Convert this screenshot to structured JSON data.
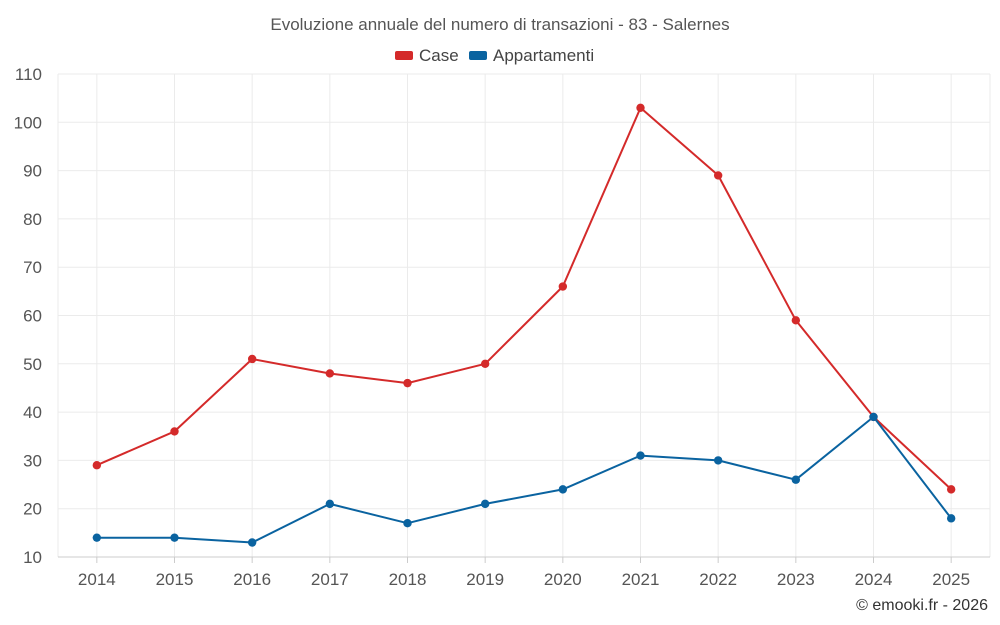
{
  "chart_data": {
    "type": "line",
    "title": "Evoluzione annuale del numero di transazioni - 83 - Salernes",
    "categories": [
      "2014",
      "2015",
      "2016",
      "2017",
      "2018",
      "2019",
      "2020",
      "2021",
      "2022",
      "2023",
      "2024",
      "2025"
    ],
    "series": [
      {
        "name": "Case",
        "color": "#d42a2a",
        "values": [
          29,
          36,
          51,
          48,
          46,
          50,
          66,
          103,
          89,
          59,
          39,
          24
        ]
      },
      {
        "name": "Appartamenti",
        "color": "#0a63a0",
        "values": [
          14,
          14,
          13,
          21,
          17,
          21,
          24,
          31,
          30,
          26,
          39,
          18
        ]
      }
    ],
    "ylim": [
      10,
      110
    ],
    "yticks": [
      10,
      20,
      30,
      40,
      50,
      60,
      70,
      80,
      90,
      100,
      110
    ],
    "xlabel": "",
    "ylabel": "",
    "grid": true,
    "legend_position": "top-center"
  },
  "credit": "© emooki.fr - 2026"
}
